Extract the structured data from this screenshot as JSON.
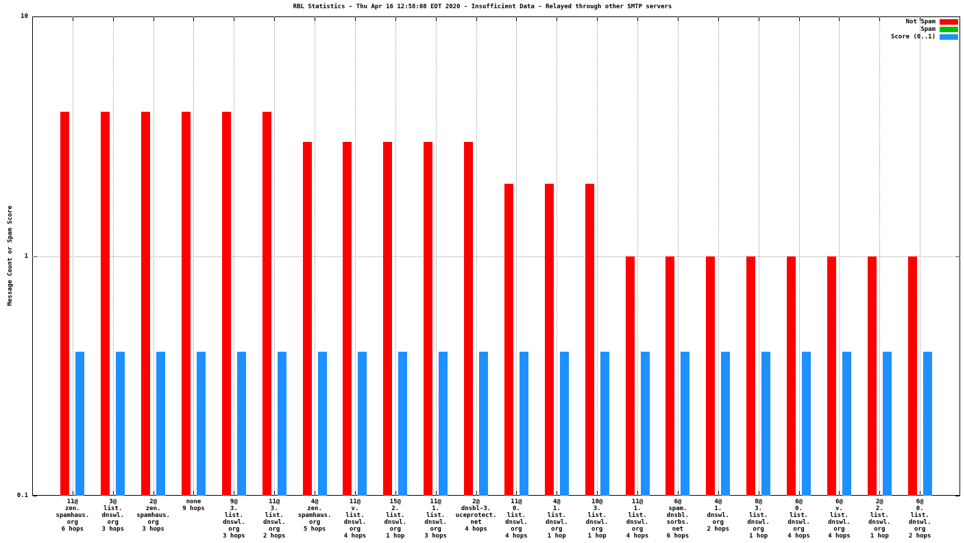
{
  "chart_data": {
    "type": "bar",
    "title": "RBL Statistics - Thu Apr 16 12:58:08 EDT 2020 - Insufficient Data - Relayed through other SMTP servers",
    "ylabel": "Message Count or Spam Score",
    "xlabel": "",
    "yscale": "log",
    "ylim": [
      0.1,
      10
    ],
    "grid": "dotted",
    "legend_position": "top-right",
    "yticks": [
      {
        "label": "10",
        "value": 10
      },
      {
        "label": "1",
        "value": 1
      },
      {
        "label": "0.1",
        "value": 0.1
      }
    ],
    "categories": [
      [
        "11@",
        "zen.",
        "spamhaus.",
        "org",
        "6 hops"
      ],
      [
        "3@",
        "list.",
        "dnswl.",
        "org",
        "3 hops"
      ],
      [
        "2@",
        "zen.",
        "spamhaus.",
        "org",
        "3 hops"
      ],
      [
        "none",
        "9 hops"
      ],
      [
        "9@",
        "3.",
        "list.",
        "dnswl.",
        "org",
        "3 hops"
      ],
      [
        "11@",
        "3.",
        "list.",
        "dnswl.",
        "org",
        "2 hops"
      ],
      [
        "4@",
        "zen.",
        "spamhaus.",
        "org",
        "5 hops"
      ],
      [
        "11@",
        "v.",
        "list.",
        "dnswl.",
        "org",
        "4 hops"
      ],
      [
        "15@",
        "2.",
        "list.",
        "dnswl.",
        "org",
        "1 hop"
      ],
      [
        "11@",
        "1.",
        "list.",
        "dnswl.",
        "org",
        "3 hops"
      ],
      [
        "2@",
        "dnsbl-3.",
        "uceprotect.",
        "net",
        "4 hops"
      ],
      [
        "11@",
        "0.",
        "list.",
        "dnswl.",
        "org",
        "4 hops"
      ],
      [
        "4@",
        "1.",
        "list.",
        "dnswl.",
        "org",
        "1 hop"
      ],
      [
        "10@",
        "3.",
        "list.",
        "dnswl.",
        "org",
        "1 hop"
      ],
      [
        "11@",
        "1.",
        "list.",
        "dnswl.",
        "org",
        "4 hops"
      ],
      [
        "6@",
        "spam.",
        "dnsbl.",
        "sorbs.",
        "net",
        "6 hops"
      ],
      [
        "4@",
        "1.",
        "dnswl.",
        "org",
        "2 hops"
      ],
      [
        "8@",
        "3.",
        "list.",
        "dnswl.",
        "org",
        "1 hop"
      ],
      [
        "6@",
        "0.",
        "list.",
        "dnswl.",
        "org",
        "4 hops"
      ],
      [
        "6@",
        "v.",
        "list.",
        "dnswl.",
        "org",
        "4 hops"
      ],
      [
        "2@",
        "2.",
        "list.",
        "dnswl.",
        "org",
        "1 hop"
      ],
      [
        "6@",
        "0.",
        "list.",
        "dnswl.",
        "org",
        "2 hops"
      ]
    ],
    "series": [
      {
        "name": "Not Spam",
        "key": "not-spam",
        "color": "#ff0000",
        "values": [
          4,
          4,
          4,
          4,
          4,
          4,
          3,
          3,
          3,
          3,
          3,
          2,
          2,
          2,
          1,
          1,
          1,
          1,
          1,
          1,
          1,
          1
        ]
      },
      {
        "name": "Spam",
        "key": "spam",
        "color": "#00c000",
        "values": [
          0,
          0,
          0,
          0,
          0,
          0,
          0,
          0,
          0,
          0,
          0,
          0,
          0,
          0,
          0,
          0,
          0,
          0,
          0,
          0,
          0,
          0
        ]
      },
      {
        "name": "Score (0..1)",
        "key": "score",
        "color": "#1e90ff",
        "values": [
          0.4,
          0.4,
          0.4,
          0.4,
          0.4,
          0.4,
          0.4,
          0.4,
          0.4,
          0.4,
          0.4,
          0.4,
          0.4,
          0.4,
          0.4,
          0.4,
          0.4,
          0.4,
          0.4,
          0.4,
          0.4,
          0.4
        ]
      }
    ]
  }
}
